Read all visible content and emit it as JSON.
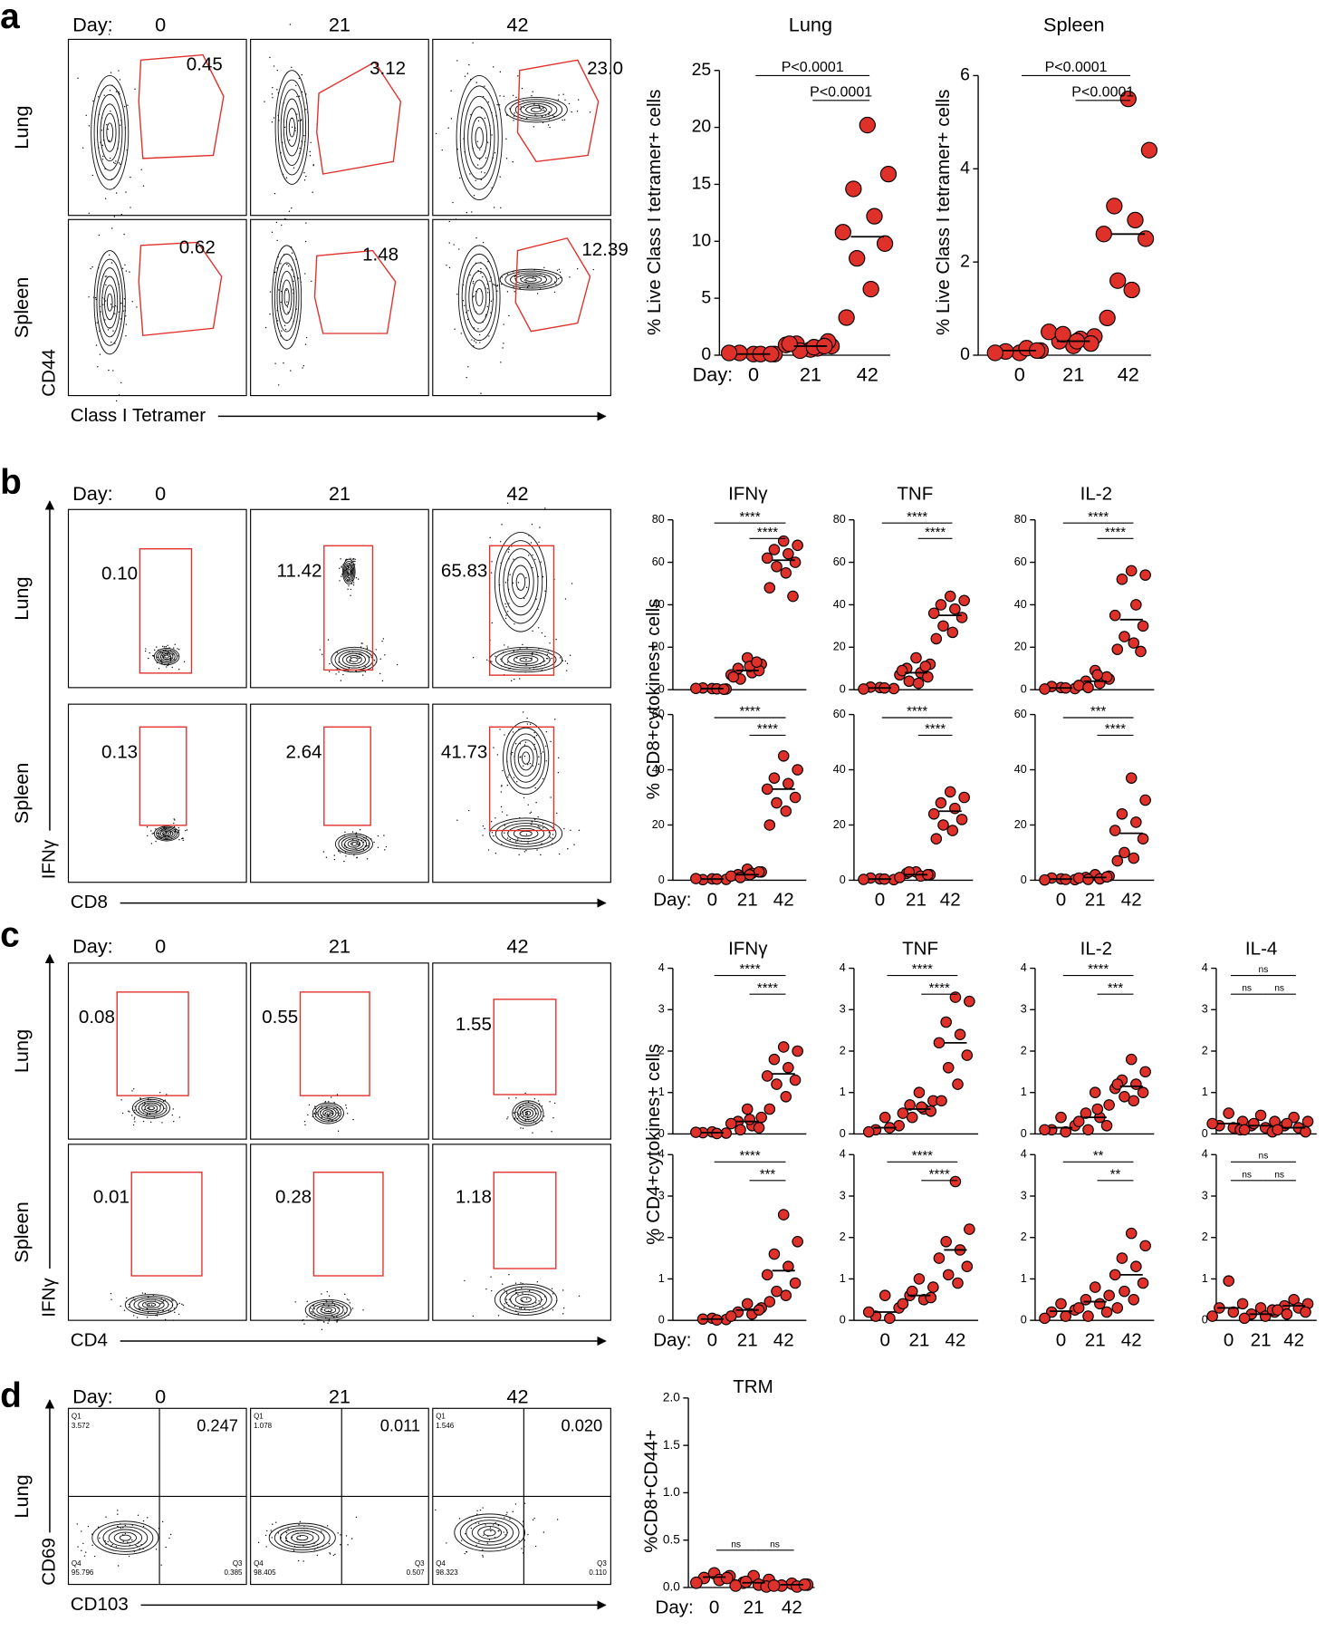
{
  "panels": [
    {
      "letter": "a",
      "day_label": "Day:",
      "days": [
        "0",
        "21",
        "42"
      ],
      "rows": [
        "Lung",
        "Spleen"
      ],
      "y_marker": "CD44",
      "x_marker": "Class I Tetramer",
      "gates": [
        [
          "0.45",
          "3.12",
          "23.0"
        ],
        [
          "0.62",
          "1.48",
          "12.39"
        ]
      ]
    },
    {
      "letter": "b",
      "day_label": "Day:",
      "days": [
        "0",
        "21",
        "42"
      ],
      "rows": [
        "Lung",
        "Spleen"
      ],
      "y_marker": "IFNγ",
      "x_marker": "CD8",
      "gates": [
        [
          "0.10",
          "11.42",
          "65.83"
        ],
        [
          "0.13",
          "2.64",
          "41.73"
        ]
      ]
    },
    {
      "letter": "c",
      "day_label": "Day:",
      "days": [
        "0",
        "21",
        "42"
      ],
      "rows": [
        "Lung",
        "Spleen"
      ],
      "y_marker": "IFNγ",
      "x_marker": "CD4",
      "gates": [
        [
          "0.08",
          "0.55",
          "1.55"
        ],
        [
          "0.01",
          "0.28",
          "1.18"
        ]
      ]
    },
    {
      "letter": "d",
      "day_label": "Day:",
      "days": [
        "0",
        "21",
        "42"
      ],
      "rows": [
        "Lung"
      ],
      "y_marker": "CD69",
      "x_marker": "CD103",
      "quadrants": [
        [
          {
            "name": "Q1",
            "value": "3.572"
          },
          {
            "value": "0.247"
          },
          {
            "name": "Q4",
            "value": "95.796"
          },
          {
            "name": "Q3",
            "value": "0.385"
          }
        ],
        [
          {
            "name": "Q1",
            "value": "1.078"
          },
          {
            "value": "0.011"
          },
          {
            "name": "Q4",
            "value": "98.405"
          },
          {
            "name": "Q3",
            "value": "0.507"
          }
        ],
        [
          {
            "name": "Q1",
            "value": "1.546"
          },
          {
            "value": "0.020"
          },
          {
            "name": "Q4",
            "value": "98.323"
          },
          {
            "name": "Q3",
            "value": "0.110"
          }
        ]
      ]
    }
  ],
  "chart_data": [
    {
      "type": "strip",
      "title": "Lung",
      "ylabel": "% Live Class I tetramer+ cells",
      "xlabel": "Day:",
      "categories": [
        "0",
        "21",
        "42"
      ],
      "color": "#e0302a",
      "ylim": [
        0,
        25
      ],
      "yticks": [
        0,
        5,
        10,
        15,
        20,
        25
      ],
      "groups": [
        [
          0.1,
          0.1,
          0.2,
          0.1,
          0.2,
          0.1
        ],
        [
          0.5,
          0.8,
          1.0,
          0.6,
          0.9,
          1.2,
          0.4,
          0.7,
          1.0,
          0.8
        ],
        [
          20.2,
          15.9,
          14.6,
          12.2,
          10.8,
          9.8,
          8.5,
          5.8,
          3.3
        ]
      ],
      "means": [
        0.1,
        0.8,
        10.4
      ],
      "significance": [
        {
          "label": "P<0.0001",
          "from": 0,
          "to": 2
        },
        {
          "label": "P<0.0001",
          "from": 1,
          "to": 2
        }
      ]
    },
    {
      "type": "strip",
      "title": "Spleen",
      "ylabel": "% Live Class I tetramer+ cells",
      "categories": [
        "0",
        "21",
        "42"
      ],
      "color": "#e0302a",
      "ylim": [
        0,
        6
      ],
      "yticks": [
        0,
        2,
        4,
        6
      ],
      "groups": [
        [
          0.05,
          0.1,
          0.08,
          0.15,
          0.05,
          0.1
        ],
        [
          0.2,
          0.4,
          0.3,
          0.35,
          0.5,
          0.25,
          0.45,
          0.3
        ],
        [
          5.5,
          4.4,
          3.2,
          2.9,
          2.6,
          2.5,
          1.6,
          1.4,
          0.8
        ]
      ],
      "means": [
        0.1,
        0.3,
        2.6
      ],
      "significance": [
        {
          "label": "P<0.0001",
          "from": 0,
          "to": 2
        },
        {
          "label": "P<0.0001",
          "from": 1,
          "to": 2
        }
      ]
    },
    {
      "type": "strip",
      "title": "IFNγ",
      "ylabel": "% CD8+cytokines+ cells",
      "color": "#e0302a",
      "ylim": [
        0,
        80
      ],
      "yticks": [
        0,
        20,
        40,
        60,
        80
      ],
      "groups": [
        [
          0.5,
          0.3,
          0.8,
          0.4,
          0.6,
          0.2
        ],
        [
          15,
          12,
          10,
          8,
          7,
          9,
          5,
          11,
          6,
          13
        ],
        [
          70,
          68,
          66,
          64,
          62,
          60,
          58,
          55,
          48,
          44
        ]
      ],
      "means": [
        0.5,
        9,
        61
      ],
      "significance": [
        {
          "label": "****",
          "from": 0,
          "to": 2
        },
        {
          "label": "****",
          "from": 1,
          "to": 2
        }
      ]
    },
    {
      "type": "strip",
      "title": "TNF",
      "color": "#e0302a",
      "ylim": [
        0,
        80
      ],
      "yticks": [
        0,
        20,
        40,
        60,
        80
      ],
      "groups": [
        [
          1,
          0.5,
          1.2,
          0.8,
          0.3
        ],
        [
          15,
          12,
          10,
          8,
          7,
          6,
          4,
          3,
          9,
          11
        ],
        [
          44,
          42,
          40,
          38,
          36,
          34,
          30,
          27,
          24
        ]
      ],
      "means": [
        0.8,
        8,
        35
      ],
      "significance": [
        {
          "label": "****",
          "from": 0,
          "to": 2
        },
        {
          "label": "****",
          "from": 1,
          "to": 2
        }
      ]
    },
    {
      "type": "strip",
      "title": "IL-2",
      "color": "#e0302a",
      "ylim": [
        0,
        80
      ],
      "yticks": [
        0,
        20,
        40,
        60,
        80
      ],
      "groups": [
        [
          1,
          0.5,
          1.5,
          0.8,
          0.3
        ],
        [
          9,
          5,
          4,
          3,
          2,
          6,
          1,
          7
        ],
        [
          56,
          54,
          52,
          40,
          35,
          30,
          25,
          22,
          19,
          18
        ]
      ],
      "means": [
        0.8,
        4,
        33
      ],
      "significance": [
        {
          "label": "****",
          "from": 0,
          "to": 2
        },
        {
          "label": "****",
          "from": 1,
          "to": 2
        }
      ]
    },
    {
      "type": "strip",
      "xlabel": "Day:",
      "categories": [
        "0",
        "21",
        "42"
      ],
      "color": "#e0302a",
      "ylim": [
        0,
        60
      ],
      "yticks": [
        0,
        20,
        40,
        60
      ],
      "groups": [
        [
          0.5,
          0.3,
          0.2,
          0.4,
          0.6
        ],
        [
          4,
          3,
          2,
          2.5,
          1.5,
          3,
          1,
          2
        ],
        [
          45,
          40,
          37,
          35,
          33,
          30,
          28,
          25,
          20
        ]
      ],
      "means": [
        0.4,
        2,
        33
      ],
      "significance": [
        {
          "label": "****",
          "from": 0,
          "to": 2
        },
        {
          "label": "****",
          "from": 1,
          "to": 2
        }
      ]
    },
    {
      "type": "strip",
      "categories": [
        "0",
        "21",
        "42"
      ],
      "color": "#e0302a",
      "ylim": [
        0,
        60
      ],
      "yticks": [
        0,
        20,
        40,
        60
      ],
      "groups": [
        [
          0.5,
          0.2,
          0.8,
          0.4,
          0.3
        ],
        [
          3,
          2,
          2.5,
          1.5,
          1,
          2,
          3
        ],
        [
          32,
          30,
          28,
          26,
          24,
          22,
          20,
          18,
          15
        ]
      ],
      "means": [
        0.4,
        2,
        25
      ],
      "significance": [
        {
          "label": "****",
          "from": 0,
          "to": 2
        },
        {
          "label": "****",
          "from": 1,
          "to": 2
        }
      ]
    },
    {
      "type": "strip",
      "categories": [
        "0",
        "21",
        "42"
      ],
      "color": "#e0302a",
      "ylim": [
        0,
        60
      ],
      "yticks": [
        0,
        20,
        40,
        60
      ],
      "groups": [
        [
          0.5,
          0.2,
          0.8,
          0.3,
          0.1
        ],
        [
          2,
          1.5,
          1,
          0.5,
          0.8,
          1.2,
          0.3
        ],
        [
          37,
          29,
          24,
          21,
          18,
          15,
          10,
          8,
          7
        ]
      ],
      "means": [
        0.4,
        1,
        17
      ],
      "significance": [
        {
          "label": "***",
          "from": 0,
          "to": 2
        },
        {
          "label": "****",
          "from": 1,
          "to": 2
        }
      ]
    },
    {
      "type": "strip",
      "title": "IFNγ",
      "ylabel": "% CD4+cytokines+ cells",
      "color": "#e0302a",
      "ylim": [
        0,
        4
      ],
      "yticks": [
        0,
        1,
        2,
        3,
        4
      ],
      "groups": [
        [
          0.05,
          0.02,
          0.03,
          0.01,
          0.04
        ],
        [
          0.6,
          0.4,
          0.3,
          0.2,
          0.25,
          0.15,
          0.1,
          0.35
        ],
        [
          2.1,
          2.0,
          1.8,
          1.6,
          1.4,
          1.3,
          1.2,
          0.9,
          0.6
        ]
      ],
      "means": [
        0.03,
        0.3,
        1.45
      ],
      "significance": [
        {
          "label": "****",
          "from": 0,
          "to": 2
        },
        {
          "label": "****",
          "from": 1,
          "to": 2
        }
      ]
    },
    {
      "type": "strip",
      "title": "TNF",
      "color": "#e0302a",
      "ylim": [
        0,
        4
      ],
      "yticks": [
        0,
        1,
        2,
        3,
        4
      ],
      "groups": [
        [
          0.4,
          0.2,
          0.1,
          0.15,
          0.05
        ],
        [
          1.0,
          0.8,
          0.7,
          0.6,
          0.5,
          0.55,
          0.4,
          0.65
        ],
        [
          3.3,
          3.2,
          2.7,
          2.4,
          2.2,
          1.9,
          1.6,
          1.2,
          0.8
        ]
      ],
      "means": [
        0.15,
        0.6,
        2.2
      ],
      "significance": [
        {
          "label": "****",
          "from": 0,
          "to": 2
        },
        {
          "label": "****",
          "from": 1,
          "to": 2
        }
      ]
    },
    {
      "type": "strip",
      "title": "IL-2",
      "color": "#e0302a",
      "ylim": [
        0,
        4
      ],
      "yticks": [
        0,
        1,
        2,
        3,
        4
      ],
      "groups": [
        [
          0.4,
          0.2,
          0.1,
          0.05,
          0.1
        ],
        [
          1.0,
          0.7,
          0.5,
          0.4,
          0.3,
          0.2,
          0.1,
          0.6
        ],
        [
          1.8,
          1.5,
          1.3,
          1.2,
          1.1,
          1.0,
          0.9,
          0.8,
          1.2
        ]
      ],
      "means": [
        0.15,
        0.4,
        1.15
      ],
      "significance": [
        {
          "label": "****",
          "from": 0,
          "to": 2
        },
        {
          "label": "***",
          "from": 1,
          "to": 2
        }
      ]
    },
    {
      "type": "strip",
      "title": "IL-4",
      "color": "#e0302a",
      "ylim": [
        0,
        4
      ],
      "yticks": [
        0,
        1,
        2,
        3,
        4
      ],
      "groups": [
        [
          0.5,
          0.3,
          0.2,
          0.15,
          0.25,
          0.1
        ],
        [
          0.45,
          0.3,
          0.2,
          0.15,
          0.1,
          0.05,
          0.25
        ],
        [
          0.4,
          0.3,
          0.2,
          0.15,
          0.1,
          0.05,
          0.25
        ]
      ],
      "means": [
        0.25,
        0.2,
        0.15
      ],
      "significance": [
        {
          "label": "ns",
          "from": 0,
          "to": 2
        },
        {
          "label": "ns",
          "from": 0,
          "to": 1
        },
        {
          "label": "ns",
          "from": 1,
          "to": 2
        }
      ]
    },
    {
      "type": "strip",
      "xlabel": "Day:",
      "categories": [
        "0",
        "21",
        "42"
      ],
      "color": "#e0302a",
      "ylim": [
        0,
        4
      ],
      "yticks": [
        0,
        1,
        2,
        3,
        4
      ],
      "groups": [
        [
          0.05,
          0.02,
          0.03,
          0.01
        ],
        [
          0.4,
          0.3,
          0.2,
          0.15,
          0.1,
          0.25
        ],
        [
          2.55,
          1.9,
          1.6,
          1.3,
          1.1,
          0.9,
          0.7,
          0.6,
          0.45
        ]
      ],
      "means": [
        0.03,
        0.25,
        1.2
      ],
      "significance": [
        {
          "label": "****",
          "from": 0,
          "to": 2
        },
        {
          "label": "***",
          "from": 1,
          "to": 2
        }
      ]
    },
    {
      "type": "strip",
      "categories": [
        "0",
        "21",
        "42"
      ],
      "color": "#e0302a",
      "ylim": [
        0,
        4
      ],
      "yticks": [
        0,
        1,
        2,
        3,
        4
      ],
      "groups": [
        [
          0.6,
          0.3,
          0.1,
          0.05,
          0.2
        ],
        [
          1.0,
          0.8,
          0.6,
          0.5,
          0.4,
          0.55,
          0.7
        ],
        [
          3.35,
          2.2,
          1.9,
          1.7,
          1.5,
          1.3,
          1.1,
          0.9
        ]
      ],
      "means": [
        0.2,
        0.6,
        1.7
      ],
      "significance": [
        {
          "label": "****",
          "from": 0,
          "to": 2
        },
        {
          "label": "****",
          "from": 1,
          "to": 2
        }
      ]
    },
    {
      "type": "strip",
      "categories": [
        "0",
        "21",
        "42"
      ],
      "color": "#e0302a",
      "ylim": [
        0,
        4
      ],
      "yticks": [
        0,
        1,
        2,
        3,
        4
      ],
      "groups": [
        [
          0.4,
          0.25,
          0.2,
          0.1,
          0.05
        ],
        [
          0.8,
          0.6,
          0.5,
          0.4,
          0.3,
          0.2,
          0.1
        ],
        [
          2.1,
          1.8,
          1.5,
          1.3,
          1.1,
          0.9,
          0.7,
          0.5,
          0.3
        ]
      ],
      "means": [
        0.22,
        0.45,
        1.1
      ],
      "significance": [
        {
          "label": "**",
          "from": 0,
          "to": 2
        },
        {
          "label": "**",
          "from": 1,
          "to": 2
        }
      ]
    },
    {
      "type": "strip",
      "categories": [
        "0",
        "21",
        "42"
      ],
      "color": "#e0302a",
      "ylim": [
        0,
        4
      ],
      "yticks": [
        0,
        1,
        2,
        3,
        4
      ],
      "groups": [
        [
          0.95,
          0.4,
          0.3,
          0.2,
          0.1
        ],
        [
          0.3,
          0.2,
          0.15,
          0.1,
          0.05,
          0.25
        ],
        [
          0.5,
          0.4,
          0.35,
          0.3,
          0.25,
          0.2,
          0.15
        ]
      ],
      "means": [
        0.3,
        0.15,
        0.35
      ],
      "significance": [
        {
          "label": "ns",
          "from": 0,
          "to": 2
        },
        {
          "label": "ns",
          "from": 0,
          "to": 1
        },
        {
          "label": "ns",
          "from": 1,
          "to": 2
        }
      ]
    },
    {
      "type": "strip",
      "title": "TRM",
      "ylabel": "%CD8+CD44+",
      "xlabel": "Day:",
      "categories": [
        "0",
        "21",
        "42"
      ],
      "color": "#e0302a",
      "ylim": [
        0,
        2
      ],
      "yticks": [
        {
          "value": 0,
          "label": "0.0"
        },
        {
          "value": 0.5,
          "label": "0.5"
        },
        {
          "value": 1,
          "label": "1.0"
        },
        {
          "value": 1.5,
          "label": "1.5"
        },
        {
          "value": 2,
          "label": "2.0"
        }
      ],
      "groups": [
        [
          0.15,
          0.12,
          0.1,
          0.08,
          0.05,
          0.1
        ],
        [
          0.12,
          0.08,
          0.05,
          0.03,
          0.02,
          0.01,
          0.06
        ],
        [
          0.04,
          0.03,
          0.02,
          0.01,
          0.02,
          0.03
        ]
      ],
      "means": [
        0.11,
        0.05,
        0.03
      ],
      "significance": [
        {
          "label": "ns",
          "from": 0,
          "to": 1
        },
        {
          "label": "ns",
          "from": 1,
          "to": 2
        }
      ]
    }
  ]
}
